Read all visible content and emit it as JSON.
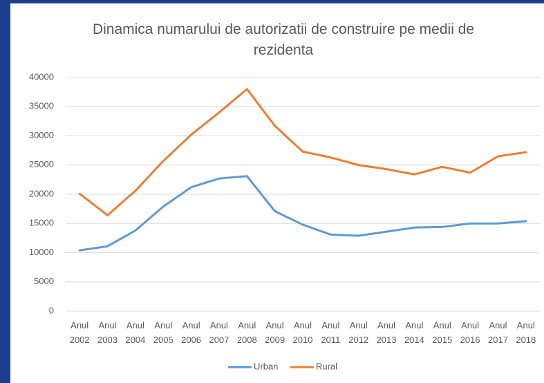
{
  "chart_data": {
    "type": "line",
    "title": "Dinamica numarului de autorizatii de construire pe medii de rezidenta",
    "categories": [
      "Anul 2002",
      "Anul 2003",
      "Anul 2004",
      "Anul 2005",
      "Anul 2006",
      "Anul 2007",
      "Anul 2008",
      "Anul 2009",
      "Anul 2010",
      "Anul 2011",
      "Anul 2012",
      "Anul 2013",
      "Anul 2014",
      "Anul 2015",
      "Anul 2016",
      "Anul 2017",
      "Anul 2018"
    ],
    "series": [
      {
        "name": "Urban",
        "color": "#5b9bd5",
        "values": [
          10400,
          11100,
          13800,
          17900,
          21200,
          22700,
          23100,
          17100,
          14800,
          13100,
          12900,
          13600,
          14300,
          14400,
          15000,
          15000,
          15400
        ]
      },
      {
        "name": "Rural",
        "color": "#ed7d31",
        "values": [
          20100,
          16400,
          20600,
          25700,
          30200,
          34000,
          38000,
          31700,
          27300,
          26300,
          25000,
          24300,
          23400,
          24700,
          23700,
          26500,
          27200
        ]
      }
    ],
    "ylim": [
      0,
      40000
    ],
    "yticks": [
      0,
      5000,
      10000,
      15000,
      20000,
      25000,
      30000,
      35000,
      40000
    ],
    "grid": true,
    "legend": "bottom"
  }
}
